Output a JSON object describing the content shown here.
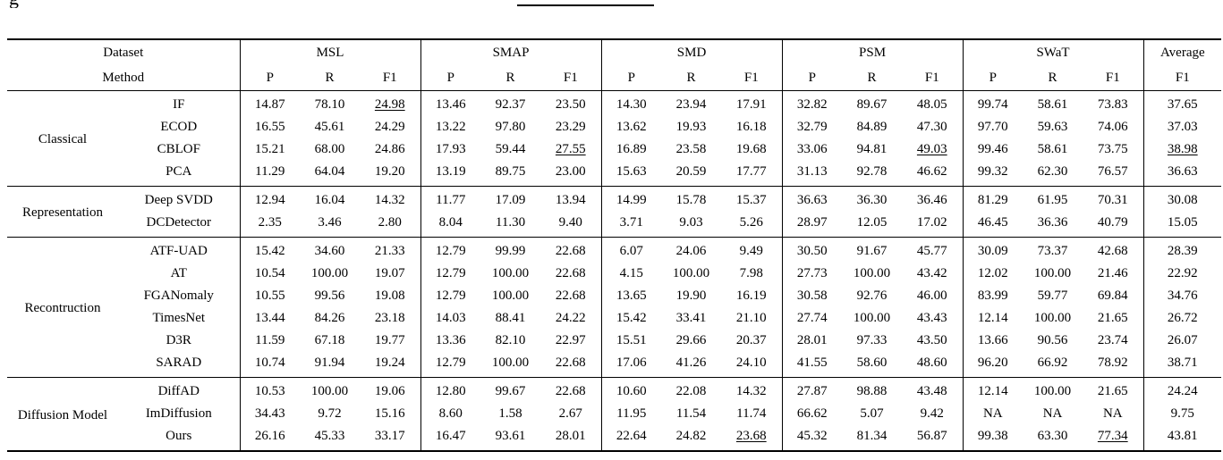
{
  "page": {
    "background": "#ffffff",
    "text_color": "#000000"
  },
  "clipped_caption": {
    "fragment_text": "g g"
  },
  "table": {
    "header": {
      "dataset_label": "Dataset",
      "method_label": "Method",
      "groups": [
        {
          "label": "MSL",
          "cols": [
            "P",
            "R",
            "F1"
          ]
        },
        {
          "label": "SMAP",
          "cols": [
            "P",
            "R",
            "F1"
          ]
        },
        {
          "label": "SMD",
          "cols": [
            "P",
            "R",
            "F1"
          ]
        },
        {
          "label": "PSM",
          "cols": [
            "P",
            "R",
            "F1"
          ]
        },
        {
          "label": "SWaT",
          "cols": [
            "P",
            "R",
            "F1"
          ]
        },
        {
          "label": "Average",
          "cols": [
            "F1"
          ]
        }
      ]
    },
    "sections": [
      {
        "category": "Classical",
        "rows": [
          {
            "method": "IF",
            "values": [
              "14.87",
              "78.10",
              "24.98",
              "13.46",
              "92.37",
              "23.50",
              "14.30",
              "23.94",
              "17.91",
              "32.82",
              "89.67",
              "48.05",
              "99.74",
              "58.61",
              "73.83",
              "37.65"
            ],
            "underline": [
              2
            ],
            "bold": []
          },
          {
            "method": "ECOD",
            "values": [
              "16.55",
              "45.61",
              "24.29",
              "13.22",
              "97.80",
              "23.29",
              "13.62",
              "19.93",
              "16.18",
              "32.79",
              "84.89",
              "47.30",
              "97.70",
              "59.63",
              "74.06",
              "37.03"
            ],
            "underline": [],
            "bold": []
          },
          {
            "method": "CBLOF",
            "values": [
              "15.21",
              "68.00",
              "24.86",
              "17.93",
              "59.44",
              "27.55",
              "16.89",
              "23.58",
              "19.68",
              "33.06",
              "94.81",
              "49.03",
              "99.46",
              "58.61",
              "73.75",
              "38.98"
            ],
            "underline": [
              5,
              11,
              15
            ],
            "bold": []
          },
          {
            "method": "PCA",
            "values": [
              "11.29",
              "64.04",
              "19.20",
              "13.19",
              "89.75",
              "23.00",
              "15.63",
              "20.59",
              "17.77",
              "31.13",
              "92.78",
              "46.62",
              "99.32",
              "62.30",
              "76.57",
              "36.63"
            ],
            "underline": [],
            "bold": []
          }
        ]
      },
      {
        "category": "Representation",
        "rows": [
          {
            "method": "Deep SVDD",
            "values": [
              "12.94",
              "16.04",
              "14.32",
              "11.77",
              "17.09",
              "13.94",
              "14.99",
              "15.78",
              "15.37",
              "36.63",
              "36.30",
              "36.46",
              "81.29",
              "61.95",
              "70.31",
              "30.08"
            ],
            "underline": [],
            "bold": []
          },
          {
            "method": "DCDetector",
            "values": [
              "2.35",
              "3.46",
              "2.80",
              "8.04",
              "11.30",
              "9.40",
              "3.71",
              "9.03",
              "5.26",
              "28.97",
              "12.05",
              "17.02",
              "46.45",
              "36.36",
              "40.79",
              "15.05"
            ],
            "underline": [],
            "bold": []
          }
        ]
      },
      {
        "category": "Recontruction",
        "rows": [
          {
            "method": "ATF-UAD",
            "values": [
              "15.42",
              "34.60",
              "21.33",
              "12.79",
              "99.99",
              "22.68",
              "6.07",
              "24.06",
              "9.49",
              "30.50",
              "91.67",
              "45.77",
              "30.09",
              "73.37",
              "42.68",
              "28.39"
            ],
            "underline": [],
            "bold": []
          },
          {
            "method": "AT",
            "values": [
              "10.54",
              "100.00",
              "19.07",
              "12.79",
              "100.00",
              "22.68",
              "4.15",
              "100.00",
              "7.98",
              "27.73",
              "100.00",
              "43.42",
              "12.02",
              "100.00",
              "21.46",
              "22.92"
            ],
            "underline": [],
            "bold": []
          },
          {
            "method": "FGANomaly",
            "values": [
              "10.55",
              "99.56",
              "19.08",
              "12.79",
              "100.00",
              "22.68",
              "13.65",
              "19.90",
              "16.19",
              "30.58",
              "92.76",
              "46.00",
              "83.99",
              "59.77",
              "69.84",
              "34.76"
            ],
            "underline": [],
            "bold": []
          },
          {
            "method": "TimesNet",
            "values": [
              "13.44",
              "84.26",
              "23.18",
              "14.03",
              "88.41",
              "24.22",
              "15.42",
              "33.41",
              "21.10",
              "27.74",
              "100.00",
              "43.43",
              "12.14",
              "100.00",
              "21.65",
              "26.72"
            ],
            "underline": [],
            "bold": []
          },
          {
            "method": "D3R",
            "values": [
              "11.59",
              "67.18",
              "19.77",
              "13.36",
              "82.10",
              "22.97",
              "15.51",
              "29.66",
              "20.37",
              "28.01",
              "97.33",
              "43.50",
              "13.66",
              "90.56",
              "23.74",
              "26.07"
            ],
            "underline": [],
            "bold": []
          },
          {
            "method": "SARAD",
            "values": [
              "10.74",
              "91.94",
              "19.24",
              "12.79",
              "100.00",
              "22.68",
              "17.06",
              "41.26",
              "24.10",
              "41.55",
              "58.60",
              "48.60",
              "96.20",
              "66.92",
              "78.92",
              "38.71"
            ],
            "underline": [],
            "bold": [
              8,
              14
            ]
          }
        ]
      },
      {
        "category": "Diffusion Model",
        "rows": [
          {
            "method": "DiffAD",
            "values": [
              "10.53",
              "100.00",
              "19.06",
              "12.80",
              "99.67",
              "22.68",
              "10.60",
              "22.08",
              "14.32",
              "27.87",
              "98.88",
              "43.48",
              "12.14",
              "100.00",
              "21.65",
              "24.24"
            ],
            "underline": [],
            "bold": []
          },
          {
            "method": "ImDiffusion",
            "values": [
              "34.43",
              "9.72",
              "15.16",
              "8.60",
              "1.58",
              "2.67",
              "11.95",
              "11.54",
              "11.74",
              "66.62",
              "5.07",
              "9.42",
              "NA",
              "NA",
              "NA",
              "9.75"
            ],
            "underline": [],
            "bold": []
          },
          {
            "method": "Ours",
            "method_bold": true,
            "values": [
              "26.16",
              "45.33",
              "33.17",
              "16.47",
              "93.61",
              "28.01",
              "22.64",
              "24.82",
              "23.68",
              "45.32",
              "81.34",
              "56.87",
              "99.38",
              "63.30",
              "77.34",
              "43.81"
            ],
            "underline": [
              8,
              14
            ],
            "bold": [
              2,
              5,
              11,
              15
            ]
          }
        ]
      }
    ]
  }
}
